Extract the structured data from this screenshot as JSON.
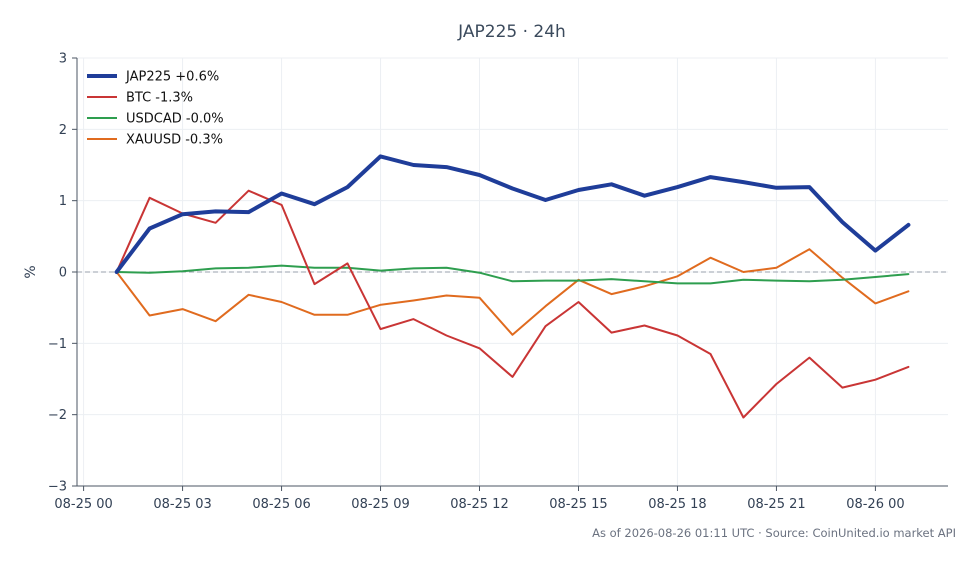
{
  "chart_data": {
    "type": "line",
    "title": "JAP225 · 24h",
    "xlabel": "",
    "ylabel": "%",
    "x": [
      "08-25 01:00",
      "08-25 02:00",
      "08-25 03:00",
      "08-25 04:00",
      "08-25 05:00",
      "08-25 06:00",
      "08-25 07:00",
      "08-25 08:00",
      "08-25 09:00",
      "08-25 10:00",
      "08-25 11:00",
      "08-25 12:00",
      "08-25 13:00",
      "08-25 14:00",
      "08-25 15:00",
      "08-25 16:00",
      "08-25 17:00",
      "08-25 18:00",
      "08-25 19:00",
      "08-25 20:00",
      "08-25 21:00",
      "08-25 22:00",
      "08-25 23:00",
      "08-26 00:00",
      "08-26 01:00"
    ],
    "x_ticks": [
      "08-25 00",
      "08-25 03",
      "08-25 06",
      "08-25 09",
      "08-25 12",
      "08-25 15",
      "08-25 18",
      "08-25 21",
      "08-26 00"
    ],
    "x_tick_hours": [
      0,
      3,
      6,
      9,
      12,
      15,
      18,
      21,
      24
    ],
    "xlim_hours": [
      -0.2,
      26.2
    ],
    "ylim": [
      -3,
      3
    ],
    "y_ticks": [
      3,
      2,
      1,
      0,
      -1,
      -2,
      -3
    ],
    "y_tick_labels": [
      "3",
      "2",
      "1",
      "0",
      "−1",
      "−2",
      "−3"
    ],
    "zero_line": true,
    "grid": true,
    "legend_position": "top-left",
    "series": [
      {
        "name": "JAP225 +0.6%",
        "color": "#1f3d99",
        "emphasis": "bold",
        "values": [
          0.0,
          0.61,
          0.81,
          0.85,
          0.84,
          1.1,
          0.95,
          1.19,
          1.62,
          1.5,
          1.47,
          1.36,
          1.17,
          1.01,
          1.15,
          1.23,
          1.07,
          1.19,
          1.33,
          1.26,
          1.18,
          1.19,
          0.7,
          0.3,
          0.66
        ]
      },
      {
        "name": "BTC -1.3%",
        "color": "#c93535",
        "values": [
          0.0,
          1.04,
          0.82,
          0.69,
          1.14,
          0.94,
          -0.17,
          0.12,
          -0.8,
          -0.66,
          -0.89,
          -1.07,
          -1.47,
          -0.76,
          -0.42,
          -0.85,
          -0.75,
          -0.89,
          -1.15,
          -2.04,
          -1.57,
          -1.2,
          -1.62,
          -1.51,
          -1.33
        ]
      },
      {
        "name": "USDCAD -0.0%",
        "color": "#2e9e4f",
        "values": [
          0.0,
          -0.01,
          0.01,
          0.05,
          0.06,
          0.09,
          0.06,
          0.06,
          0.02,
          0.05,
          0.06,
          -0.01,
          -0.13,
          -0.12,
          -0.12,
          -0.1,
          -0.13,
          -0.16,
          -0.16,
          -0.11,
          -0.12,
          -0.13,
          -0.11,
          -0.07,
          -0.03
        ]
      },
      {
        "name": "XAUUSD -0.3%",
        "color": "#e06b1f",
        "values": [
          0.0,
          -0.61,
          -0.52,
          -0.69,
          -0.32,
          -0.42,
          -0.6,
          -0.6,
          -0.46,
          -0.4,
          -0.33,
          -0.36,
          -0.88,
          -0.48,
          -0.11,
          -0.31,
          -0.2,
          -0.06,
          0.2,
          0.0,
          0.06,
          0.32,
          -0.08,
          -0.44,
          -0.27
        ]
      }
    ]
  },
  "footer": {
    "note": "As of 2026-08-26 01:11 UTC · Source: CoinUnited.io market API"
  }
}
